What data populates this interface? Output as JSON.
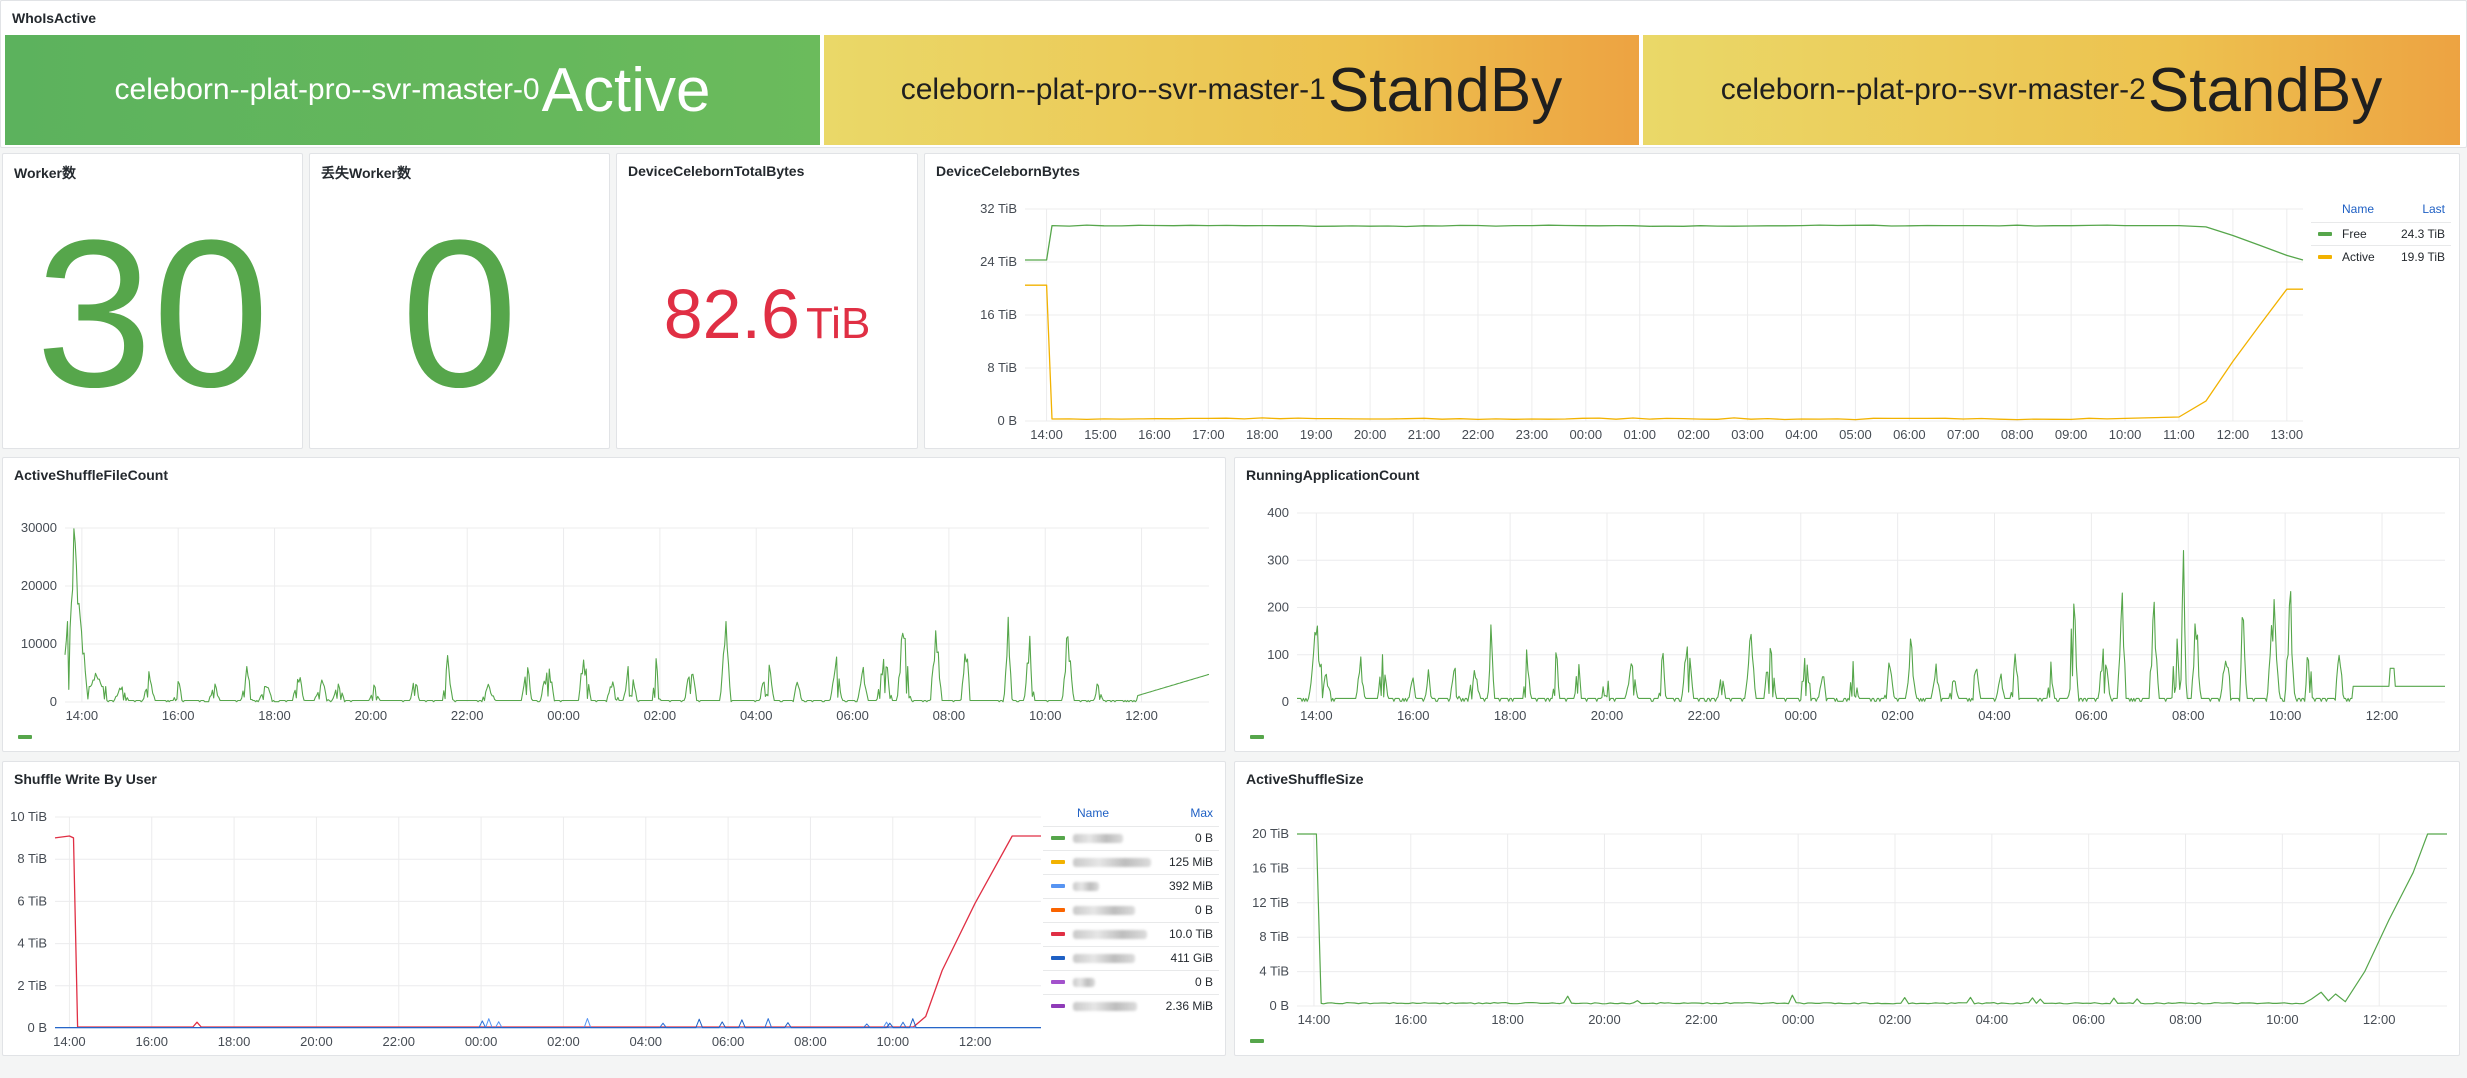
{
  "whoisactive": {
    "title": "WhoIsActive",
    "masters": [
      {
        "name": "celeborn--plat-pro--svr-master-0",
        "state": "Active"
      },
      {
        "name": "celeborn--plat-pro--svr-master-1",
        "state": "StandBy"
      },
      {
        "name": "celeborn--plat-pro--svr-master-2",
        "state": "StandBy"
      }
    ]
  },
  "worker_count": {
    "title": "Worker数",
    "value": "30"
  },
  "lost_worker_count": {
    "title": "丢失Worker数",
    "value": "0"
  },
  "total_bytes": {
    "title": "DeviceCelebornTotalBytes",
    "value": "82.6",
    "unit": "TiB"
  },
  "device_bytes": {
    "title": "DeviceCelebornBytes",
    "legend_header": {
      "name": "Name",
      "stat": "Last"
    },
    "legend": [
      {
        "name": "Free",
        "value": "24.3 TiB"
      },
      {
        "name": "Active",
        "value": "19.9 TiB"
      }
    ]
  },
  "active_shuffle_file_count": {
    "title": "ActiveShuffleFileCount"
  },
  "running_application_count": {
    "title": "RunningApplicationCount"
  },
  "shuffle_write_by_user": {
    "title": "Shuffle Write By User",
    "legend_header": {
      "name": "Name",
      "stat": "Max"
    },
    "legend_values": [
      "0 B",
      "125 MiB",
      "392 MiB",
      "0 B",
      "10.0 TiB",
      "411 GiB",
      "0 B",
      "2.36 MiB"
    ]
  },
  "active_shuffle_size": {
    "title": "ActiveShuffleSize"
  },
  "colors": {
    "green": "#56a64b",
    "yellow": "#f2b200",
    "red": "#e02f44",
    "blue": "#3274d9",
    "light_blue": "#5794f2",
    "orange": "#fa6400",
    "dark_blue": "#1f60c4",
    "purple": "#a352cc",
    "dark_purple": "#8f3bb8"
  },
  "chart_data": [
    {
      "type": "line",
      "title": "DeviceCelebornBytes",
      "x_ticks": [
        "14:00",
        "15:00",
        "16:00",
        "17:00",
        "18:00",
        "19:00",
        "20:00",
        "21:00",
        "22:00",
        "23:00",
        "00:00",
        "01:00",
        "02:00",
        "03:00",
        "04:00",
        "05:00",
        "06:00",
        "07:00",
        "08:00",
        "09:00",
        "10:00",
        "11:00",
        "12:00",
        "13:00"
      ],
      "y_ticks": [
        "0 B",
        "8 TiB",
        "16 TiB",
        "24 TiB",
        "32 TiB"
      ],
      "ylim": [
        0,
        32
      ],
      "x": [
        13.6,
        14.0,
        14.1,
        17.0,
        20.0,
        23.0,
        1.5,
        4.0,
        7.0,
        10.0,
        11.0,
        11.5,
        12.0,
        12.5,
        13.0,
        13.3
      ],
      "x_hours_relative": [
        -0.4,
        0,
        0.1,
        3,
        6,
        9,
        11.5,
        14,
        17,
        20,
        21,
        21.5,
        22,
        22.5,
        23,
        23.3
      ],
      "series": [
        {
          "name": "Free",
          "values": [
            24.3,
            24.3,
            29.5,
            29.5,
            29.4,
            29.5,
            29.4,
            29.5,
            29.5,
            29.5,
            29.5,
            29.3,
            28.0,
            26.5,
            25.0,
            24.3
          ]
        },
        {
          "name": "Active",
          "values": [
            20.5,
            20.5,
            0.3,
            0.4,
            0.3,
            0.3,
            0.4,
            0.3,
            0.3,
            0.4,
            0.6,
            3.0,
            9.0,
            14.5,
            19.9,
            19.9
          ]
        }
      ],
      "legend": "right"
    },
    {
      "type": "line",
      "title": "ActiveShuffleFileCount",
      "x_ticks": [
        "14:00",
        "16:00",
        "18:00",
        "20:00",
        "22:00",
        "00:00",
        "02:00",
        "04:00",
        "06:00",
        "08:00",
        "10:00",
        "12:00"
      ],
      "y_ticks": [
        "0",
        "10000",
        "20000",
        "30000"
      ],
      "ylim": [
        0,
        34000
      ],
      "series": [
        {
          "name": "",
          "values": [
            5000,
            30000,
            12000,
            3000,
            7000,
            2000,
            8000,
            1000,
            7000,
            3000,
            9000,
            12000,
            15000,
            16000,
            7000,
            4000,
            6000,
            7000
          ]
        }
      ]
    },
    {
      "type": "line",
      "title": "RunningApplicationCount",
      "x_ticks": [
        "14:00",
        "16:00",
        "18:00",
        "20:00",
        "22:00",
        "00:00",
        "02:00",
        "04:00",
        "06:00",
        "08:00",
        "10:00",
        "12:00"
      ],
      "y_ticks": [
        "0",
        "100",
        "200",
        "300",
        "400"
      ],
      "ylim": [
        0,
        420
      ],
      "series": [
        {
          "name": "",
          "values": [
            60,
            220,
            40,
            120,
            20,
            130,
            30,
            150,
            10,
            170,
            60,
            370,
            200,
            240,
            40,
            35,
            35
          ]
        }
      ]
    },
    {
      "type": "line",
      "title": "Shuffle Write By User",
      "x_ticks": [
        "14:00",
        "16:00",
        "18:00",
        "20:00",
        "22:00",
        "00:00",
        "02:00",
        "04:00",
        "06:00",
        "08:00",
        "10:00",
        "12:00"
      ],
      "y_ticks": [
        "0 B",
        "2 TiB",
        "4 TiB",
        "6 TiB",
        "8 TiB",
        "10 TiB"
      ],
      "ylim": [
        0,
        10.5
      ],
      "series": [
        {
          "name": "",
          "values": [
            10.0,
            10.0,
            0.05,
            0.1,
            0.3,
            0.1,
            0.1,
            0.2,
            0.1,
            0.3,
            0.2,
            5.0,
            10.0
          ]
        }
      ]
    },
    {
      "type": "line",
      "title": "ActiveShuffleSize",
      "x_ticks": [
        "14:00",
        "16:00",
        "18:00",
        "20:00",
        "22:00",
        "00:00",
        "02:00",
        "04:00",
        "06:00",
        "08:00",
        "10:00",
        "12:00"
      ],
      "y_ticks": [
        "0 B",
        "4 TiB",
        "8 TiB",
        "12 TiB",
        "16 TiB",
        "20 TiB"
      ],
      "ylim": [
        0,
        21
      ],
      "series": [
        {
          "name": "",
          "values": [
            20,
            20,
            0.3,
            0.3,
            0.6,
            0.3,
            0.4,
            0.3,
            0.4,
            0.5,
            0.3,
            1.0,
            1.5,
            10,
            20,
            20
          ]
        }
      ]
    }
  ]
}
